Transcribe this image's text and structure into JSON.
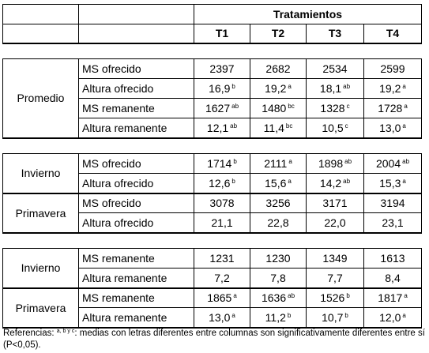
{
  "header": {
    "group_title": "Tratamientos",
    "columns": [
      "T1",
      "T2",
      "T3",
      "T4"
    ]
  },
  "sections": [
    {
      "groups": [
        {
          "label": "Promedio",
          "rows": [
            {
              "label": "MS ofrecido",
              "cells": [
                {
                  "v": "2397",
                  "s": ""
                },
                {
                  "v": "2682",
                  "s": ""
                },
                {
                  "v": "2534",
                  "s": ""
                },
                {
                  "v": "2599",
                  "s": ""
                }
              ]
            },
            {
              "label": "Altura ofrecido",
              "cells": [
                {
                  "v": "16,9",
                  "s": "b"
                },
                {
                  "v": "19,2",
                  "s": "a"
                },
                {
                  "v": "18,1",
                  "s": "ab"
                },
                {
                  "v": "19,2",
                  "s": "a"
                }
              ]
            },
            {
              "label": "MS remanente",
              "cells": [
                {
                  "v": "1627",
                  "s": "ab"
                },
                {
                  "v": "1480",
                  "s": "bc"
                },
                {
                  "v": "1328",
                  "s": "c"
                },
                {
                  "v": "1728",
                  "s": "a"
                }
              ]
            },
            {
              "label": "Altura remanente",
              "cells": [
                {
                  "v": "12,1",
                  "s": "ab"
                },
                {
                  "v": "11,4",
                  "s": "bc"
                },
                {
                  "v": "10,5",
                  "s": "c"
                },
                {
                  "v": "13,0",
                  "s": "a"
                }
              ]
            }
          ]
        }
      ]
    },
    {
      "groups": [
        {
          "label": "Invierno",
          "rows": [
            {
              "label": "MS ofrecido",
              "cells": [
                {
                  "v": "1714",
                  "s": "b"
                },
                {
                  "v": "2111",
                  "s": "a"
                },
                {
                  "v": "1898",
                  "s": "ab"
                },
                {
                  "v": "2004",
                  "s": "ab"
                }
              ]
            },
            {
              "label": "Altura ofrecido",
              "cells": [
                {
                  "v": "12,6",
                  "s": "b"
                },
                {
                  "v": "15,6",
                  "s": "a"
                },
                {
                  "v": "14,2",
                  "s": "ab"
                },
                {
                  "v": "15,3",
                  "s": "a"
                }
              ]
            }
          ]
        },
        {
          "label": "Primavera",
          "rows": [
            {
              "label": "MS ofrecido",
              "cells": [
                {
                  "v": "3078",
                  "s": ""
                },
                {
                  "v": "3256",
                  "s": ""
                },
                {
                  "v": "3171",
                  "s": ""
                },
                {
                  "v": "3194",
                  "s": ""
                }
              ]
            },
            {
              "label": "Altura ofrecido",
              "cells": [
                {
                  "v": "21,1",
                  "s": ""
                },
                {
                  "v": "22,8",
                  "s": ""
                },
                {
                  "v": "22,0",
                  "s": ""
                },
                {
                  "v": "23,1",
                  "s": ""
                }
              ]
            }
          ]
        }
      ]
    },
    {
      "groups": [
        {
          "label": "Invierno",
          "rows": [
            {
              "label": "MS remanente",
              "cells": [
                {
                  "v": "1231",
                  "s": ""
                },
                {
                  "v": "1230",
                  "s": ""
                },
                {
                  "v": "1349",
                  "s": ""
                },
                {
                  "v": "1613",
                  "s": ""
                }
              ]
            },
            {
              "label": "Altura remanente",
              "cells": [
                {
                  "v": "7,2",
                  "s": ""
                },
                {
                  "v": "7,8",
                  "s": ""
                },
                {
                  "v": "7,7",
                  "s": ""
                },
                {
                  "v": "8,4",
                  "s": ""
                }
              ]
            }
          ]
        },
        {
          "label": "Primavera",
          "rows": [
            {
              "label": "MS remanente",
              "cells": [
                {
                  "v": "1865",
                  "s": "a"
                },
                {
                  "v": "1636",
                  "s": "ab"
                },
                {
                  "v": "1526",
                  "s": "b"
                },
                {
                  "v": "1817",
                  "s": "a"
                }
              ]
            },
            {
              "label": "Altura remanente",
              "cells": [
                {
                  "v": "13,0",
                  "s": "a"
                },
                {
                  "v": "11,2",
                  "s": "b"
                },
                {
                  "v": "10,7",
                  "s": "b"
                },
                {
                  "v": "12,0",
                  "s": "a"
                }
              ]
            }
          ]
        }
      ]
    }
  ],
  "footnote": {
    "prefix": "Referencias: ",
    "letters": "a, b y c",
    "text": ": medias con letras diferentes entre columnas son significativamente diferentes entre sí (P<0,05)."
  }
}
